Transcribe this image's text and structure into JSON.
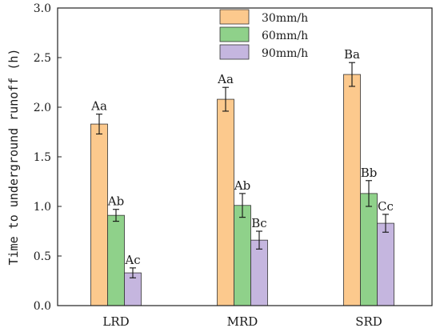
{
  "chart_data": {
    "type": "bar",
    "title": "",
    "xlabel": "",
    "ylabel": "Time to underground runoff (h)",
    "ylim": [
      0.0,
      3.0
    ],
    "yticks": [
      "0.0",
      "0.5",
      "1.0",
      "1.5",
      "2.0",
      "2.5",
      "3.0"
    ],
    "categories": [
      "LRD",
      "MRD",
      "SRD"
    ],
    "legend_position": "top-center",
    "series": [
      {
        "name": "30mm/h",
        "color": "#fcc98d",
        "values": [
          1.83,
          2.08,
          2.33
        ],
        "errors": [
          0.1,
          0.12,
          0.12
        ],
        "labels": [
          "Aa",
          "Aa",
          "Ba"
        ]
      },
      {
        "name": "60mm/h",
        "color": "#8fd18a",
        "values": [
          0.91,
          1.01,
          1.13
        ],
        "errors": [
          0.06,
          0.12,
          0.13
        ],
        "labels": [
          "Ab",
          "Ab",
          "Bb"
        ]
      },
      {
        "name": "90mm/h",
        "color": "#c5b6df",
        "values": [
          0.33,
          0.66,
          0.83
        ],
        "errors": [
          0.05,
          0.09,
          0.09
        ],
        "labels": [
          "Ac",
          "Bc",
          "Cc"
        ]
      }
    ]
  }
}
